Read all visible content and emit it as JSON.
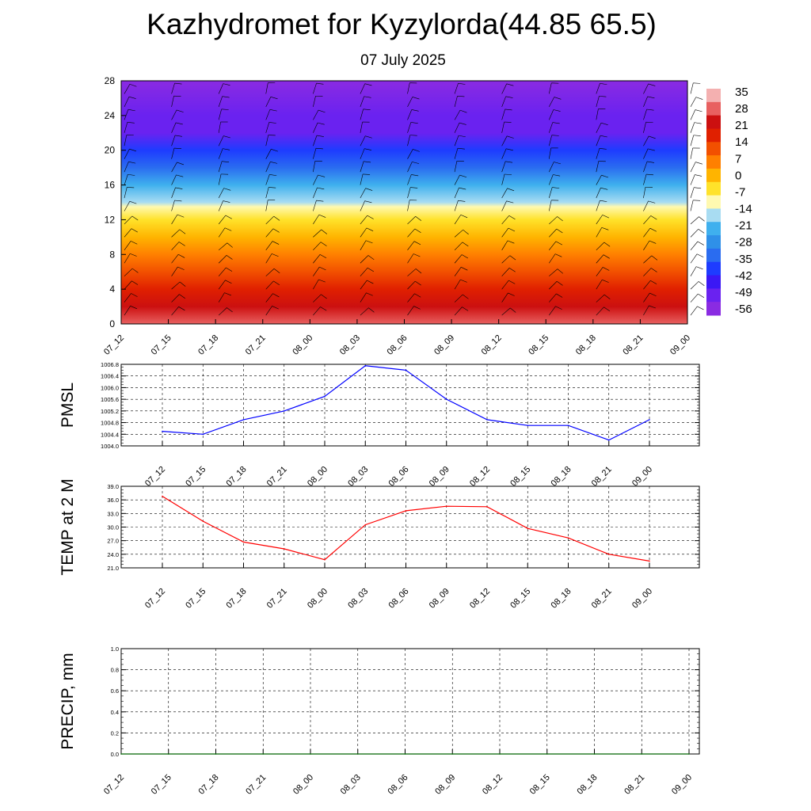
{
  "title": "Kazhydromet for Kyzylorda(44.85 65.5)",
  "date": "07 July 2025",
  "time_labels": [
    "07_12",
    "07_15",
    "07_18",
    "07_21",
    "08_00",
    "08_03",
    "08_06",
    "08_09",
    "08_12",
    "08_15",
    "08_18",
    "08_21",
    "09_00"
  ],
  "colors": {
    "pmsl_line": "#0000ff",
    "temp_line": "#ff0000",
    "precip_line": "#006400",
    "colorbar": [
      "#8a2be2",
      "#6a22f0",
      "#3b18f5",
      "#1e3cff",
      "#2a6cf0",
      "#2f90e8",
      "#3fb0ee",
      "#a8dcf2",
      "#fff9b0",
      "#ffe22a",
      "#ffb400",
      "#ff8000",
      "#f25000",
      "#e02000",
      "#cc1010",
      "#e86060",
      "#f4b0b0"
    ]
  },
  "chart_data": [
    {
      "type": "heatmap",
      "name": "cross-section",
      "ylim": [
        0,
        28
      ],
      "yticks": [
        0,
        4,
        8,
        12,
        16,
        20,
        24,
        28
      ],
      "x": [
        "07_12",
        "07_15",
        "07_18",
        "07_21",
        "08_00",
        "08_03",
        "08_06",
        "08_09",
        "08_12",
        "08_15",
        "08_18",
        "08_21",
        "09_00"
      ],
      "colorbar_labels": [
        "35",
        "28",
        "21",
        "14",
        "7",
        "0",
        "-7",
        "-14",
        "-21",
        "-28",
        "-35",
        "-42",
        "-49",
        "-56"
      ],
      "temperature_levels": [
        {
          "z": 0,
          "t": 32
        },
        {
          "z": 2,
          "t": 26
        },
        {
          "z": 4,
          "t": 20
        },
        {
          "z": 6,
          "t": 14
        },
        {
          "z": 8,
          "t": 8
        },
        {
          "z": 10,
          "t": 2
        },
        {
          "z": 12,
          "t": -4
        },
        {
          "z": 13.5,
          "t": -10
        },
        {
          "z": 14,
          "t": -16
        },
        {
          "z": 16,
          "t": -26
        },
        {
          "z": 18,
          "t": -36
        },
        {
          "z": 20,
          "t": -44
        },
        {
          "z": 22,
          "t": -52
        },
        {
          "z": 24,
          "t": -56
        },
        {
          "z": 28,
          "t": -58
        }
      ]
    },
    {
      "type": "line",
      "name": "PMSL",
      "ylabel": "PMSL",
      "ylim": [
        1004.0,
        1006.8
      ],
      "yticks": [
        "1004.0",
        "1004.4",
        "1004.8",
        "1005.2",
        "1005.6",
        "1006.0",
        "1006.4",
        "1006.8"
      ],
      "x": [
        "07_12",
        "07_15",
        "07_18",
        "07_21",
        "08_00",
        "08_03",
        "08_06",
        "08_09",
        "08_12",
        "08_15",
        "08_18",
        "08_21",
        "09_00"
      ],
      "values": [
        1004.5,
        1004.4,
        1004.9,
        1005.2,
        1005.7,
        1006.75,
        1006.6,
        1005.6,
        1004.9,
        1004.7,
        1004.7,
        1004.2,
        1004.9
      ]
    },
    {
      "type": "line",
      "name": "TEMP",
      "ylabel": "TEMP at 2 M",
      "ylim": [
        21.0,
        39.0
      ],
      "yticks": [
        "21.0",
        "24.0",
        "27.0",
        "30.0",
        "33.0",
        "36.0",
        "39.0"
      ],
      "x": [
        "07_12",
        "07_15",
        "07_18",
        "07_21",
        "08_00",
        "08_03",
        "08_06",
        "08_09",
        "08_12",
        "08_15",
        "08_18",
        "08_21",
        "09_00"
      ],
      "values": [
        36.8,
        31.3,
        26.7,
        25.2,
        22.8,
        30.5,
        33.6,
        34.6,
        34.5,
        29.7,
        27.6,
        24.0,
        22.5
      ]
    },
    {
      "type": "line",
      "name": "PRECIP",
      "ylabel": "PRECIP, mm",
      "ylim": [
        0.0,
        1.0
      ],
      "yticks": [
        "0.0",
        "0.2",
        "0.4",
        "0.6",
        "0.8",
        "1.0"
      ],
      "x": [
        "07_12",
        "07_15",
        "07_18",
        "07_21",
        "08_00",
        "08_03",
        "08_06",
        "08_09",
        "08_12",
        "08_15",
        "08_18",
        "08_21",
        "09_00"
      ],
      "values": [
        0,
        0,
        0,
        0,
        0,
        0,
        0,
        0,
        0,
        0,
        0,
        0,
        0
      ]
    }
  ]
}
